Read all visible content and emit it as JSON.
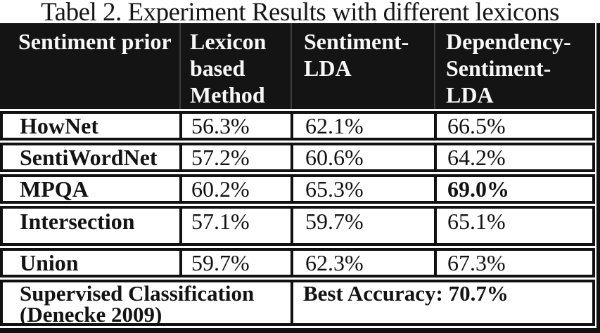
{
  "title": "Tabel 2. Experiment Results with different lexicons",
  "table": {
    "columns": [
      "Sentiment prior",
      "Lexicon based Method",
      "Sentiment-LDA",
      "Dependency-Sentiment-LDA"
    ],
    "rows": [
      {
        "label": "HowNet",
        "values": [
          "56.3%",
          "62.1%",
          "66.5%"
        ]
      },
      {
        "label": "SentiWordNet",
        "values": [
          "57.2%",
          "60.6%",
          "64.2%"
        ]
      },
      {
        "label": "MPQA",
        "values": [
          "60.2%",
          "65.3%",
          "69.0%"
        ]
      },
      {
        "label": "Intersection",
        "values": [
          "57.1%",
          "59.7%",
          "65.1%"
        ]
      },
      {
        "label": "Union",
        "values": [
          "59.7%",
          "62.3%",
          "67.3%"
        ]
      }
    ],
    "footer": {
      "left": "Supervised Classification (Denecke 2009)",
      "right": "Best Accuracy: 70.7%"
    }
  },
  "colors": {
    "header_bg": "#141414",
    "header_text": "#f8f8f8",
    "border": "#111111",
    "body_text": "#131313",
    "page_bg": "#ffffff"
  },
  "chart_data": {
    "type": "table",
    "title": "Tabel 2. Experiment Results with different lexicons",
    "columns": [
      "Sentiment prior",
      "Lexicon based Method",
      "Sentiment-LDA",
      "Dependency-Sentiment-LDA"
    ],
    "rows": [
      [
        "HowNet",
        "56.3%",
        "62.1%",
        "66.5%"
      ],
      [
        "SentiWordNet",
        "57.2%",
        "60.6%",
        "64.2%"
      ],
      [
        "MPQA",
        "60.2%",
        "65.3%",
        "69.0%"
      ],
      [
        "Intersection",
        "57.1%",
        "59.7%",
        "65.1%"
      ],
      [
        "Union",
        "59.7%",
        "62.3%",
        "67.3%"
      ]
    ],
    "footer_row": [
      "Supervised Classification (Denecke 2009)",
      "Best Accuracy: 70.7%"
    ],
    "notes": "Best result 69.0% (MPQA / Dependency-Sentiment-LDA) shown in bold"
  }
}
